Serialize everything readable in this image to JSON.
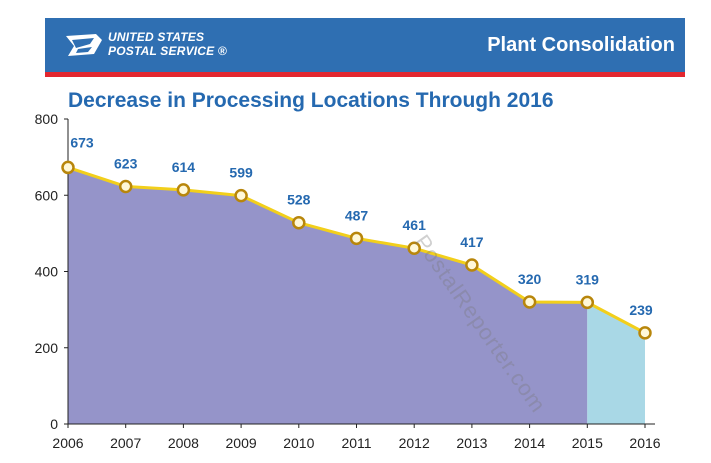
{
  "header": {
    "logo_line1": "UNITED STATES",
    "logo_line2": "POSTAL SERVICE ®",
    "title": "Plant Consolidation",
    "bar_color": "#2f6fb2",
    "accent_color": "#e3262f",
    "logo_icon": "eagle-icon"
  },
  "watermark": "PostalReporter.com",
  "chart_data": {
    "type": "area",
    "title": "Decrease in Processing Locations Through 2016",
    "xlabel": "",
    "ylabel": "",
    "x": [
      "2006",
      "2007",
      "2008",
      "2009",
      "2010",
      "2011",
      "2012",
      "2013",
      "2014",
      "2015",
      "2016"
    ],
    "values": [
      673,
      623,
      614,
      599,
      528,
      487,
      461,
      417,
      320,
      319,
      239
    ],
    "ylim": [
      0,
      800
    ],
    "yticks": [
      0,
      200,
      400,
      600,
      800
    ],
    "grid": false,
    "legend": "none",
    "colors": {
      "area_actual": "#9594c9",
      "area_projected": "#a9d8e6",
      "line": "#f2cf1b",
      "marker_edge": "#b8860b",
      "label": "#2569b0"
    },
    "projected_from": "2015"
  }
}
